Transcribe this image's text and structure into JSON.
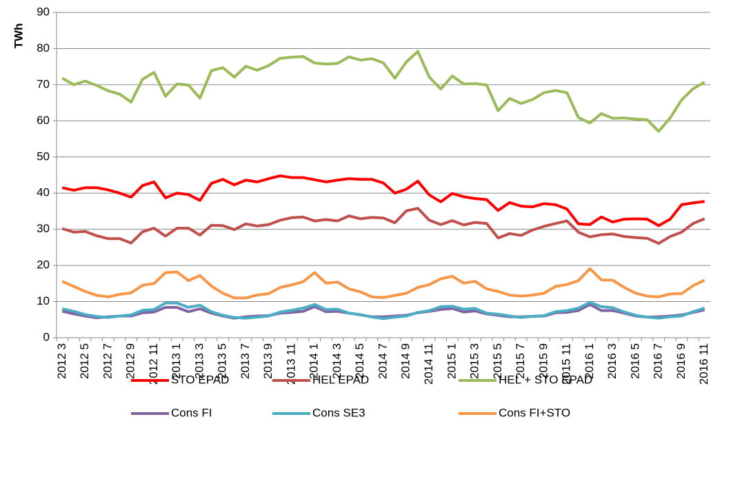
{
  "chart_data": {
    "type": "line",
    "y_label": "TWh",
    "categories": [
      "2012 3",
      null,
      "2012 5",
      null,
      "2012 7",
      null,
      "2012 9",
      null,
      "2012 11",
      null,
      "2013 1",
      null,
      "2013 3",
      null,
      "2013 5",
      null,
      "2013 7",
      null,
      "2013 9",
      null,
      "2013 11",
      null,
      "2014 1",
      null,
      "2014 3",
      null,
      "2014 5",
      null,
      "2014 7",
      null,
      "2014 9",
      null,
      "2014 11",
      null,
      "2015 1",
      null,
      "2015 3",
      null,
      "2015 5",
      null,
      "2015 7",
      null,
      "2015 9",
      null,
      "2015 11",
      null,
      "2016 1",
      null,
      "2016 3",
      null,
      "2016 5",
      null,
      "2016 7",
      null,
      "2016 9",
      null,
      "2016 11"
    ],
    "ylim": [
      0,
      90
    ],
    "yticks": [
      0,
      10,
      20,
      30,
      40,
      50,
      60,
      70,
      80,
      90
    ],
    "grid": true,
    "legend": "bottom",
    "series": [
      {
        "name": "STO EPAD",
        "color": "#ff0000",
        "values": [
          41.5,
          40.8,
          41.5,
          41.5,
          40.9,
          40,
          38.9,
          42.1,
          43.1,
          38.7,
          40,
          39.6,
          38,
          42.7,
          43.8,
          42.3,
          43.6,
          43.1,
          44,
          44.8,
          44.3,
          44.3,
          43.7,
          43.1,
          43.6,
          44,
          43.8,
          43.8,
          42.8,
          40,
          41.1,
          43.3,
          39.5,
          37.6,
          39.9,
          39,
          38.5,
          38.2,
          35.2,
          37.4,
          36.4,
          36.2,
          37.1,
          36.8,
          35.6,
          31.5,
          31.3,
          33.4,
          32,
          32.8,
          32.9,
          32.8,
          31,
          32.8,
          36.8,
          37.3,
          37.7
        ]
      },
      {
        "name": "HEL EPAD",
        "color": "#c0504d",
        "values": [
          30.2,
          29.2,
          29.4,
          28.2,
          27.4,
          27.4,
          26.2,
          29.3,
          30.3,
          28.1,
          30.3,
          30.3,
          28.4,
          31.1,
          31,
          29.9,
          31.5,
          30.9,
          31.3,
          32.5,
          33.2,
          33.4,
          32.3,
          32.7,
          32.3,
          33.7,
          32.9,
          33.3,
          33.1,
          31.8,
          35.1,
          35.8,
          32.5,
          31.3,
          32.4,
          31.2,
          31.9,
          31.6,
          27.6,
          28.8,
          28.3,
          29.8,
          30.8,
          31.6,
          32.3,
          29.2,
          27.9,
          28.5,
          28.7,
          28,
          27.7,
          27.5,
          26.1,
          28,
          29.2,
          31.6,
          32.9
        ]
      },
      {
        "name": "HEL + STO EPAD",
        "color": "#9bbb59",
        "values": [
          71.8,
          70,
          71,
          69.8,
          68.3,
          67.4,
          65.2,
          71.5,
          73.4,
          66.8,
          70.2,
          69.9,
          66.3,
          73.9,
          74.7,
          72.1,
          75.1,
          74,
          75.3,
          77.3,
          77.6,
          77.8,
          76,
          75.7,
          75.9,
          77.7,
          76.8,
          77.2,
          76,
          71.8,
          76.3,
          79.2,
          72.1,
          68.8,
          72.4,
          70.2,
          70.3,
          69.9,
          62.8,
          66.2,
          64.8,
          65.9,
          67.8,
          68.4,
          67.8,
          60.9,
          59.4,
          62,
          60.7,
          60.8,
          60.5,
          60.3,
          57.1,
          60.8,
          65.8,
          68.9,
          70.7
        ]
      },
      {
        "name": "Cons FI",
        "color": "#8064a2",
        "values": [
          7.3,
          6.6,
          6,
          5.5,
          5.8,
          6,
          6,
          6.9,
          7.1,
          8.4,
          8.4,
          7.2,
          8,
          6.8,
          6,
          5.4,
          5.8,
          6,
          6.1,
          6.8,
          7,
          7.3,
          8.6,
          7.2,
          7.3,
          6.8,
          6.3,
          5.8,
          5.8,
          6,
          6.2,
          6.9,
          7.3,
          7.8,
          8.1,
          7.1,
          7.4,
          6.6,
          6.2,
          5.8,
          5.8,
          5.9,
          6,
          6.9,
          7,
          7.5,
          9.2,
          7.5,
          7.5,
          6.8,
          6,
          5.7,
          5.8,
          6,
          6.3,
          7,
          7.7
        ]
      },
      {
        "name": "Cons SE3",
        "color": "#4bacc6",
        "values": [
          8,
          7.3,
          6.4,
          5.9,
          5.6,
          6,
          6.3,
          7.6,
          7.8,
          9.6,
          9.6,
          8.4,
          9,
          7.2,
          6.2,
          5.6,
          5.4,
          5.7,
          6,
          7.1,
          7.6,
          8.2,
          9.2,
          7.8,
          7.9,
          6.8,
          6.4,
          5.7,
          5.3,
          5.7,
          6,
          7,
          7.5,
          8.6,
          8.7,
          7.9,
          8.1,
          6.8,
          6.5,
          6,
          5.6,
          5.9,
          6.1,
          7.2,
          7.5,
          8.2,
          9.8,
          8.6,
          8.3,
          7.1,
          6.2,
          5.7,
          5.4,
          5.8,
          6,
          7.2,
          8.2
        ]
      },
      {
        "name": "Cons FI+STO",
        "color": "#f79646",
        "values": [
          15.6,
          14.2,
          12.8,
          11.7,
          11.3,
          12,
          12.4,
          14.5,
          15,
          18,
          18.2,
          15.8,
          17.2,
          14.3,
          12.3,
          11,
          11,
          11.8,
          12.2,
          13.9,
          14.6,
          15.5,
          18,
          15.1,
          15.4,
          13.5,
          12.7,
          11.3,
          11.1,
          11.7,
          12.3,
          13.9,
          14.7,
          16.3,
          17,
          15.1,
          15.6,
          13.5,
          12.8,
          11.8,
          11.5,
          11.8,
          12.3,
          14.2,
          14.7,
          15.8,
          19.1,
          16,
          15.9,
          13.9,
          12.3,
          11.5,
          11.3,
          12.1,
          12.2,
          14.4,
          15.9
        ]
      }
    ]
  }
}
